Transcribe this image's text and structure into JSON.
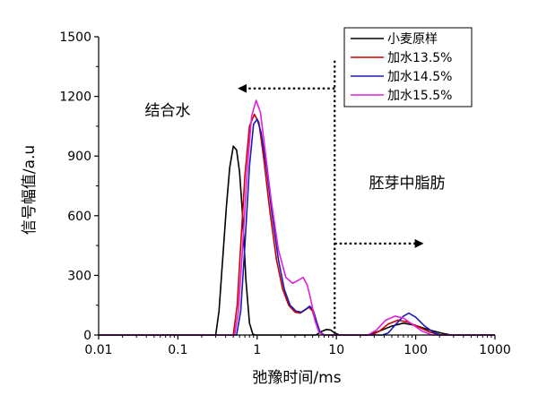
{
  "chart_data": {
    "type": "line",
    "title": "",
    "xlabel": "弛豫时间/ms",
    "ylabel": "信号幅值/a.u",
    "xscale": "log",
    "xlim": [
      0.01,
      1000
    ],
    "ylim": [
      0,
      1500
    ],
    "x_ticks": [
      0.01,
      0.1,
      1,
      10,
      100,
      1000
    ],
    "x_tick_labels": [
      "0.01",
      "0.1",
      "1",
      "10",
      "100",
      "1000"
    ],
    "y_ticks": [
      0,
      300,
      600,
      900,
      1200,
      1500
    ],
    "y_tick_labels": [
      "0",
      "300",
      "600",
      "900",
      "1200",
      "1500"
    ],
    "legend_position": "top-right",
    "series": [
      {
        "name": "小麦原样",
        "color": "#000000",
        "points": [
          [
            0.01,
            0
          ],
          [
            0.3,
            0
          ],
          [
            0.33,
            120
          ],
          [
            0.37,
            400
          ],
          [
            0.41,
            650
          ],
          [
            0.45,
            840
          ],
          [
            0.5,
            950
          ],
          [
            0.55,
            930
          ],
          [
            0.6,
            820
          ],
          [
            0.66,
            580
          ],
          [
            0.72,
            280
          ],
          [
            0.8,
            60
          ],
          [
            0.88,
            5
          ],
          [
            0.95,
            0
          ],
          [
            5.5,
            0
          ],
          [
            6.5,
            18
          ],
          [
            7.5,
            28
          ],
          [
            8.5,
            25
          ],
          [
            9.5,
            10
          ],
          [
            11,
            0
          ],
          [
            25,
            0
          ],
          [
            35,
            20
          ],
          [
            50,
            45
          ],
          [
            70,
            60
          ],
          [
            100,
            48
          ],
          [
            150,
            25
          ],
          [
            220,
            8
          ],
          [
            280,
            0
          ],
          [
            1000,
            0
          ]
        ]
      },
      {
        "name": "加水13.5%",
        "color": "#cc0000",
        "points": [
          [
            0.01,
            0
          ],
          [
            0.5,
            0
          ],
          [
            0.56,
            150
          ],
          [
            0.62,
            450
          ],
          [
            0.7,
            800
          ],
          [
            0.8,
            1050
          ],
          [
            0.92,
            1110
          ],
          [
            1.05,
            1070
          ],
          [
            1.2,
            900
          ],
          [
            1.45,
            620
          ],
          [
            1.75,
            380
          ],
          [
            2.1,
            230
          ],
          [
            2.5,
            150
          ],
          [
            3,
            115
          ],
          [
            3.5,
            110
          ],
          [
            4,
            125
          ],
          [
            4.5,
            140
          ],
          [
            5,
            120
          ],
          [
            5.5,
            60
          ],
          [
            6.2,
            15
          ],
          [
            7,
            0
          ],
          [
            28,
            0
          ],
          [
            35,
            20
          ],
          [
            45,
            55
          ],
          [
            60,
            75
          ],
          [
            80,
            65
          ],
          [
            110,
            40
          ],
          [
            150,
            15
          ],
          [
            200,
            0
          ],
          [
            1000,
            0
          ]
        ]
      },
      {
        "name": "加水14.5%",
        "color": "#1a1ab4",
        "points": [
          [
            0.01,
            0
          ],
          [
            0.55,
            0
          ],
          [
            0.62,
            120
          ],
          [
            0.7,
            450
          ],
          [
            0.8,
            850
          ],
          [
            0.9,
            1060
          ],
          [
            1,
            1085
          ],
          [
            1.12,
            1020
          ],
          [
            1.3,
            850
          ],
          [
            1.55,
            600
          ],
          [
            1.85,
            380
          ],
          [
            2.2,
            230
          ],
          [
            2.6,
            150
          ],
          [
            3.1,
            120
          ],
          [
            3.6,
            115
          ],
          [
            4.1,
            130
          ],
          [
            4.6,
            145
          ],
          [
            5.1,
            125
          ],
          [
            5.6,
            70
          ],
          [
            6.2,
            15
          ],
          [
            7,
            0
          ],
          [
            38,
            0
          ],
          [
            45,
            10
          ],
          [
            55,
            50
          ],
          [
            70,
            95
          ],
          [
            82,
            110
          ],
          [
            100,
            90
          ],
          [
            130,
            45
          ],
          [
            170,
            12
          ],
          [
            210,
            0
          ],
          [
            1000,
            0
          ]
        ]
      },
      {
        "name": "加水15.5%",
        "color": "#e020e0",
        "points": [
          [
            0.01,
            0
          ],
          [
            0.52,
            0
          ],
          [
            0.58,
            120
          ],
          [
            0.65,
            420
          ],
          [
            0.74,
            800
          ],
          [
            0.85,
            1100
          ],
          [
            0.97,
            1180
          ],
          [
            1.1,
            1120
          ],
          [
            1.25,
            940
          ],
          [
            1.5,
            680
          ],
          [
            1.85,
            430
          ],
          [
            2.3,
            290
          ],
          [
            2.8,
            260
          ],
          [
            3.3,
            275
          ],
          [
            3.8,
            290
          ],
          [
            4.3,
            250
          ],
          [
            4.8,
            170
          ],
          [
            5.4,
            70
          ],
          [
            6,
            15
          ],
          [
            6.8,
            0
          ],
          [
            25,
            0
          ],
          [
            32,
            25
          ],
          [
            42,
            75
          ],
          [
            55,
            95
          ],
          [
            70,
            85
          ],
          [
            90,
            55
          ],
          [
            120,
            20
          ],
          [
            160,
            0
          ],
          [
            1000,
            0
          ]
        ]
      }
    ],
    "annotations": [
      {
        "id": "bound-water",
        "text": "结合水"
      },
      {
        "id": "germ-fat",
        "text": "胚芽中脂肪"
      }
    ],
    "divider": {
      "x": 9.5,
      "y_from": 0,
      "y_to": 1380
    },
    "arrows": [
      {
        "id": "arrow-left",
        "x_from": 9.5,
        "x_to": 0.6,
        "y": 1240,
        "direction": "left"
      },
      {
        "id": "arrow-right",
        "x_from": 9.5,
        "x_to": 120,
        "y": 460,
        "direction": "right"
      }
    ]
  }
}
